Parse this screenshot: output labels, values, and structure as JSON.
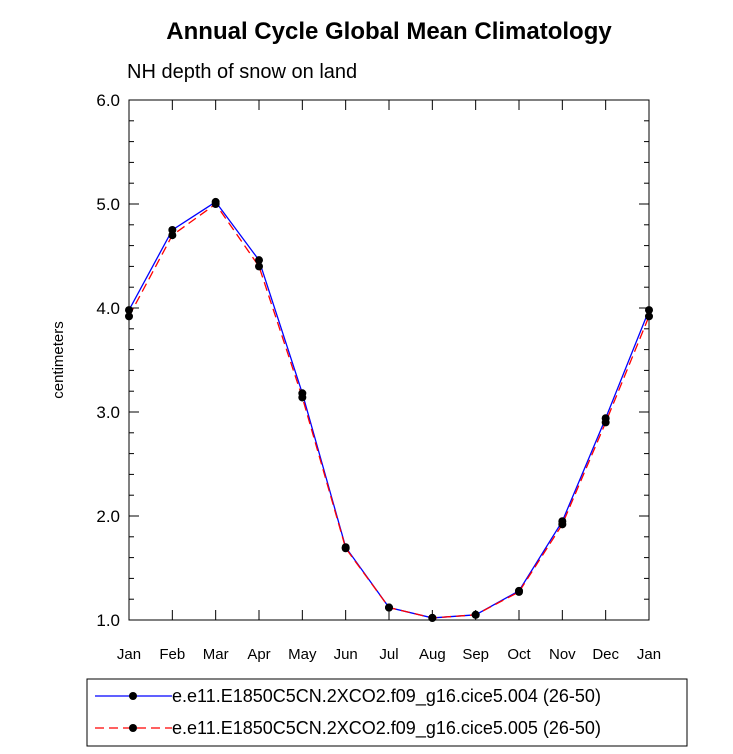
{
  "chart_data": {
    "type": "line",
    "title": "Annual Cycle Global Mean Climatology",
    "subtitle": "NH depth of snow on land",
    "xlabel": "",
    "ylabel": "centimeters",
    "categories": [
      "Jan",
      "Feb",
      "Mar",
      "Apr",
      "May",
      "Jun",
      "Jul",
      "Aug",
      "Sep",
      "Oct",
      "Nov",
      "Dec",
      "Jan"
    ],
    "ylim": [
      1.0,
      6.0
    ],
    "yticks": [
      "1.0",
      "2.0",
      "3.0",
      "4.0",
      "5.0",
      "6.0"
    ],
    "ytick_values": [
      1.0,
      2.0,
      3.0,
      4.0,
      5.0,
      6.0
    ],
    "series": [
      {
        "name": "e.e11.E1850C5CN.2XCO2.f09_g16.cice5.004 (26-50)",
        "color": "#0000ff",
        "dash": "solid",
        "values": [
          3.98,
          4.75,
          5.02,
          4.46,
          3.18,
          1.7,
          1.12,
          1.02,
          1.05,
          1.28,
          1.95,
          2.94,
          3.98
        ]
      },
      {
        "name": "e.e11.E1850C5CN.2XCO2.f09_g16.cice5.005 (26-50)",
        "color": "#ff0000",
        "dash": "dashed",
        "values": [
          3.92,
          4.7,
          5.0,
          4.4,
          3.14,
          1.69,
          1.12,
          1.02,
          1.05,
          1.27,
          1.92,
          2.9,
          3.92
        ]
      }
    ]
  }
}
